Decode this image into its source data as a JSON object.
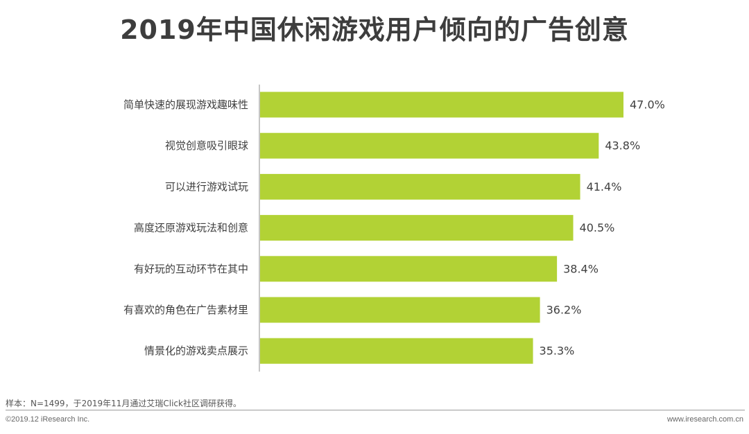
{
  "page": {
    "title": "2019年中国休闲游戏用户倾向的广告创意",
    "note": "样本：N=1499，于2019年11月通过艾瑞Click社区调研获得。",
    "copyright": "©2019.12 iResearch Inc.",
    "website": "www.iresearch.com.cn"
  },
  "chart_data": {
    "type": "bar",
    "orientation": "horizontal",
    "title": "2019年中国休闲游戏用户倾向的广告创意",
    "categories": [
      "简单快速的展现游戏趣味性",
      "视觉创意吸引眼球",
      "可以进行游戏试玩",
      "高度还原游戏玩法和创意",
      "有好玩的互动环节在其中",
      "有喜欢的角色在广告素材里",
      "情景化的游戏卖点展示"
    ],
    "values": [
      47.0,
      43.8,
      41.4,
      40.5,
      38.4,
      36.2,
      35.3
    ],
    "data_labels": [
      "47.0%",
      "43.8%",
      "41.4%",
      "40.5%",
      "38.4%",
      "36.2%",
      "35.3%"
    ],
    "unit": "%",
    "xlim": [
      0,
      47.0
    ],
    "bar_color": "#b2d235",
    "grid": false,
    "legend": "none"
  }
}
